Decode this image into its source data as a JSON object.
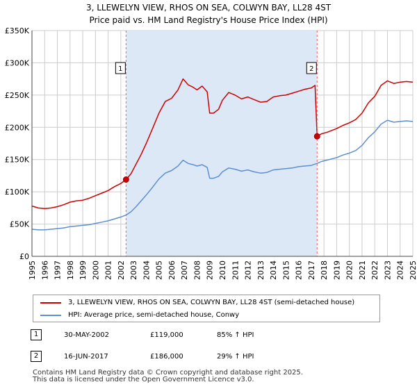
{
  "title": {
    "line1": "3, LLEWELYN VIEW, RHOS ON SEA, COLWYN BAY, LL28 4ST",
    "line2": "Price paid vs. HM Land Registry's House Price Index (HPI)"
  },
  "colors": {
    "property": "#cc0000",
    "hpi": "#5b8fd1",
    "sale_shade": "#dde8f7",
    "grid": "#cccccc",
    "marker_line": "#e06666"
  },
  "chart_data": {
    "type": "line",
    "title": "Price paid vs. HM Land Registry's House Price Index (HPI)",
    "xlabel": "",
    "ylabel": "",
    "xlim": [
      1995,
      2025
    ],
    "ylim": [
      0,
      350000
    ],
    "y_ticks": [
      0,
      50000,
      100000,
      150000,
      200000,
      250000,
      300000,
      350000
    ],
    "y_tick_labels": [
      "£0",
      "£50K",
      "£100K",
      "£150K",
      "£200K",
      "£250K",
      "£300K",
      "£350K"
    ],
    "x_ticks": [
      1995,
      1996,
      1997,
      1998,
      1999,
      2000,
      2001,
      2002,
      2003,
      2004,
      2005,
      2006,
      2007,
      2008,
      2009,
      2010,
      2011,
      2012,
      2013,
      2014,
      2015,
      2016,
      2017,
      2018,
      2019,
      2020,
      2021,
      2022,
      2023,
      2024,
      2025
    ],
    "x_tick_labels": [
      "1995",
      "1996",
      "1997",
      "1998",
      "1999",
      "2000",
      "2001",
      "2002",
      "2003",
      "2004",
      "2005",
      "2006",
      "2007",
      "2008",
      "2009",
      "2010",
      "2011",
      "2012",
      "2013",
      "2014",
      "2015",
      "2016",
      "2017",
      "2018",
      "2019",
      "2020",
      "2021",
      "2022",
      "2023",
      "2024",
      "2025"
    ],
    "grid": true,
    "shaded_range": [
      2002.41,
      2017.46
    ],
    "series": [
      {
        "name": "3, LLEWELYN VIEW, RHOS ON SEA, COLWYN BAY, LL28 4ST (semi-detached house)",
        "color": "#cc0000",
        "x": [
          1995.0,
          1995.5,
          1996.0,
          1996.5,
          1997.0,
          1997.5,
          1998.0,
          1998.5,
          1999.0,
          1999.5,
          2000.0,
          2000.5,
          2001.0,
          2001.5,
          2002.0,
          2002.41,
          2002.8,
          2003.2,
          2003.6,
          2004.0,
          2004.5,
          2005.0,
          2005.5,
          2006.0,
          2006.5,
          2006.9,
          2007.3,
          2007.7,
          2008.0,
          2008.4,
          2008.8,
          2009.0,
          2009.3,
          2009.7,
          2010.0,
          2010.5,
          2011.0,
          2011.5,
          2012.0,
          2012.5,
          2013.0,
          2013.5,
          2014.0,
          2014.5,
          2015.0,
          2015.5,
          2016.0,
          2016.5,
          2017.0,
          2017.3,
          2017.46,
          2017.8,
          2018.2,
          2018.6,
          2019.0,
          2019.5,
          2020.0,
          2020.5,
          2021.0,
          2021.5,
          2022.0,
          2022.5,
          2023.0,
          2023.5,
          2024.0,
          2024.5,
          2025.0
        ],
        "y": [
          78000,
          75000,
          74000,
          75000,
          77000,
          80000,
          84000,
          86000,
          87000,
          90000,
          94000,
          98000,
          102000,
          108000,
          113000,
          119000,
          128000,
          143000,
          158000,
          175000,
          198000,
          222000,
          240000,
          245000,
          258000,
          275000,
          266000,
          262000,
          258000,
          264000,
          255000,
          222000,
          222000,
          228000,
          242000,
          254000,
          250000,
          244000,
          247000,
          243000,
          239000,
          240000,
          247000,
          249000,
          250000,
          253000,
          256000,
          259000,
          261000,
          265000,
          186000,
          190000,
          192000,
          195000,
          198000,
          203000,
          207000,
          212000,
          222000,
          238000,
          248000,
          265000,
          272000,
          268000,
          270000,
          271000,
          270000
        ]
      },
      {
        "name": "HPI: Average price, semi-detached house, Conwy",
        "color": "#5b8fd1",
        "x": [
          1995.0,
          1995.5,
          1996.0,
          1996.5,
          1997.0,
          1997.5,
          1998.0,
          1998.5,
          1999.0,
          1999.5,
          2000.0,
          2000.5,
          2001.0,
          2001.5,
          2002.0,
          2002.41,
          2002.8,
          2003.2,
          2003.6,
          2004.0,
          2004.5,
          2005.0,
          2005.5,
          2006.0,
          2006.5,
          2006.9,
          2007.3,
          2007.7,
          2008.0,
          2008.4,
          2008.8,
          2009.0,
          2009.3,
          2009.7,
          2010.0,
          2010.5,
          2011.0,
          2011.5,
          2012.0,
          2012.5,
          2013.0,
          2013.5,
          2014.0,
          2014.5,
          2015.0,
          2015.5,
          2016.0,
          2016.5,
          2017.0,
          2017.3,
          2017.46,
          2017.8,
          2018.2,
          2018.6,
          2019.0,
          2019.5,
          2020.0,
          2020.5,
          2021.0,
          2021.5,
          2022.0,
          2022.5,
          2023.0,
          2023.5,
          2024.0,
          2024.5,
          2025.0
        ],
        "y": [
          42000,
          41000,
          41000,
          42000,
          43000,
          44000,
          46000,
          47000,
          48000,
          49000,
          51000,
          53000,
          55000,
          58000,
          61000,
          64000,
          69000,
          77000,
          86000,
          95000,
          107000,
          120000,
          129000,
          133000,
          140000,
          149000,
          144000,
          142000,
          140000,
          142000,
          138000,
          121000,
          121000,
          124000,
          131000,
          137000,
          135000,
          132000,
          134000,
          131000,
          129000,
          130000,
          134000,
          135000,
          136000,
          137000,
          139000,
          140000,
          141000,
          143000,
          144000,
          147000,
          149000,
          151000,
          153000,
          157000,
          160000,
          164000,
          172000,
          184000,
          193000,
          205000,
          211000,
          208000,
          209000,
          210000,
          209000
        ]
      }
    ],
    "sale_markers": [
      {
        "label": "1",
        "x": 2002.41,
        "y": 119000
      },
      {
        "label": "2",
        "x": 2017.46,
        "y": 186000
      }
    ]
  },
  "legend": {
    "property_label": "3, LLEWELYN VIEW, RHOS ON SEA, COLWYN BAY, LL28 4ST (semi-detached house)",
    "hpi_label": "HPI: Average price, semi-detached house, Conwy"
  },
  "sales": [
    {
      "num": "1",
      "date": "30-MAY-2002",
      "price": "£119,000",
      "hpi_change": "85% ↑ HPI"
    },
    {
      "num": "2",
      "date": "16-JUN-2017",
      "price": "£186,000",
      "hpi_change": "29% ↑ HPI"
    }
  ],
  "footer": {
    "line1": "Contains HM Land Registry data © Crown copyright and database right 2025.",
    "line2": "This data is licensed under the Open Government Licence v3.0."
  }
}
